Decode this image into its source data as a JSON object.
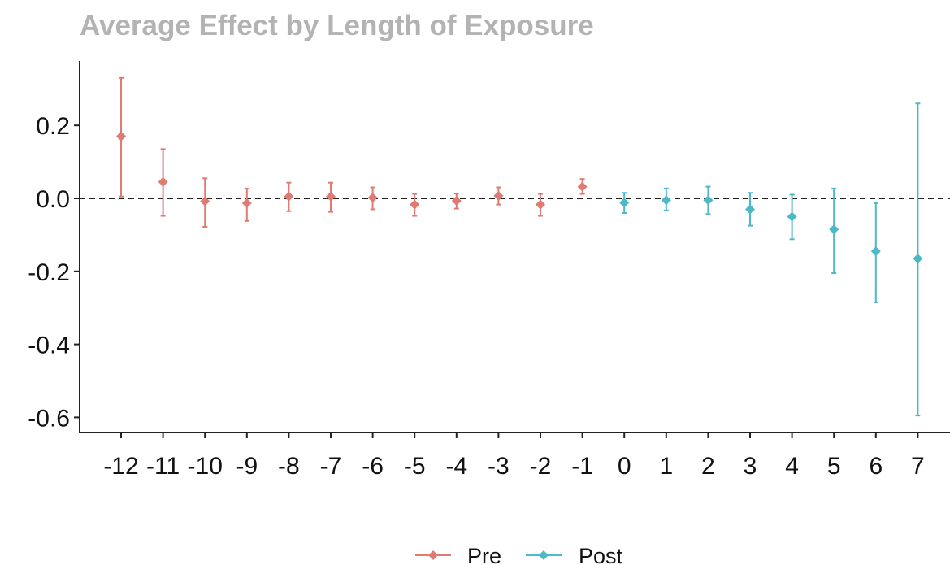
{
  "chart_data": {
    "type": "scatter",
    "title": "Average Effect by Length of Exposure",
    "xlabel": "",
    "ylabel": "",
    "ylim": [
      -0.62,
      0.36
    ],
    "y_ticks": [
      "0.2",
      "0.0",
      "-0.2",
      "-0.4",
      "-0.6"
    ],
    "y_tick_values": [
      0.2,
      0.0,
      -0.2,
      -0.4,
      -0.6
    ],
    "reference_line": {
      "y": 0.0,
      "style": "dashed"
    },
    "grid": false,
    "legend_position": "bottom",
    "categories": [
      "-12",
      "-11",
      "-10",
      "-9",
      "-8",
      "-7",
      "-6",
      "-5",
      "-4",
      "-3",
      "-2",
      "-1",
      "0",
      "1",
      "2",
      "3",
      "4",
      "5",
      "6",
      "7"
    ],
    "series": [
      {
        "name": "Pre",
        "color": "#e07b73",
        "points": [
          {
            "x": "-12",
            "y": 0.17,
            "lo": 0.005,
            "hi": 0.33
          },
          {
            "x": "-11",
            "y": 0.045,
            "lo": -0.048,
            "hi": 0.135
          },
          {
            "x": "-10",
            "y": -0.008,
            "lo": -0.078,
            "hi": 0.055
          },
          {
            "x": "-9",
            "y": -0.013,
            "lo": -0.062,
            "hi": 0.027
          },
          {
            "x": "-8",
            "y": 0.005,
            "lo": -0.035,
            "hi": 0.043
          },
          {
            "x": "-7",
            "y": 0.005,
            "lo": -0.037,
            "hi": 0.043
          },
          {
            "x": "-6",
            "y": 0.002,
            "lo": -0.03,
            "hi": 0.03
          },
          {
            "x": "-5",
            "y": -0.017,
            "lo": -0.048,
            "hi": 0.012
          },
          {
            "x": "-4",
            "y": -0.007,
            "lo": -0.028,
            "hi": 0.013
          },
          {
            "x": "-3",
            "y": 0.007,
            "lo": -0.017,
            "hi": 0.03
          },
          {
            "x": "-2",
            "y": -0.017,
            "lo": -0.048,
            "hi": 0.012
          },
          {
            "x": "-1",
            "y": 0.032,
            "lo": 0.012,
            "hi": 0.053
          }
        ]
      },
      {
        "name": "Post",
        "color": "#4db8c6",
        "points": [
          {
            "x": "0",
            "y": -0.012,
            "lo": -0.04,
            "hi": 0.015
          },
          {
            "x": "1",
            "y": -0.005,
            "lo": -0.033,
            "hi": 0.027
          },
          {
            "x": "2",
            "y": -0.005,
            "lo": -0.043,
            "hi": 0.032
          },
          {
            "x": "3",
            "y": -0.03,
            "lo": -0.075,
            "hi": 0.015
          },
          {
            "x": "4",
            "y": -0.05,
            "lo": -0.112,
            "hi": 0.01
          },
          {
            "x": "5",
            "y": -0.085,
            "lo": -0.205,
            "hi": 0.027
          },
          {
            "x": "6",
            "y": -0.145,
            "lo": -0.285,
            "hi": -0.013
          },
          {
            "x": "7",
            "y": -0.165,
            "lo": -0.595,
            "hi": 0.26
          }
        ]
      }
    ]
  }
}
